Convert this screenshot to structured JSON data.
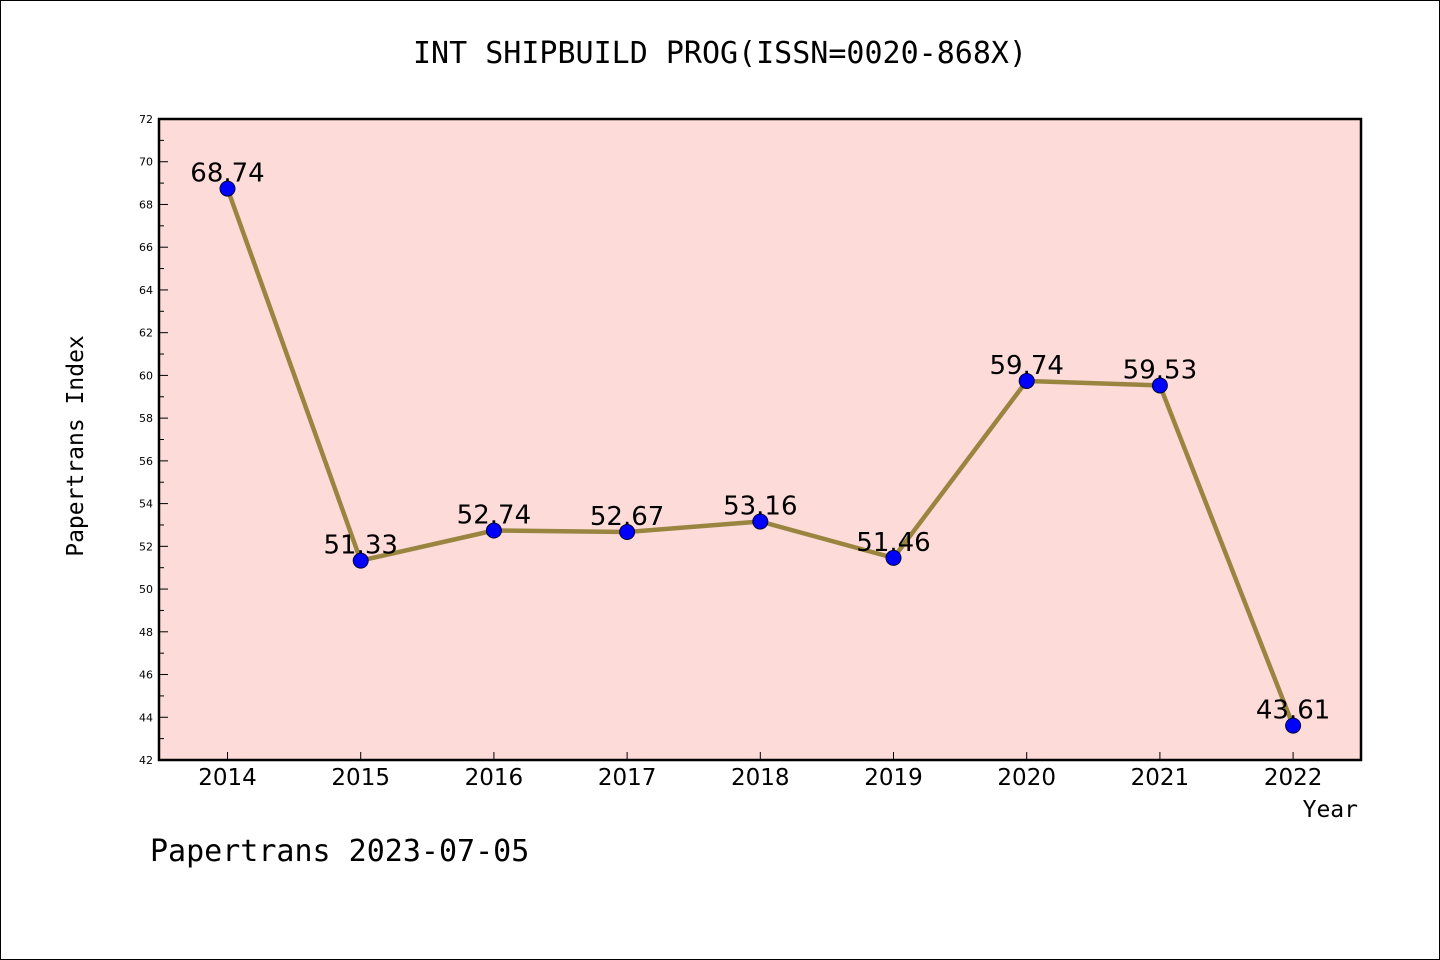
{
  "chart_data": {
    "type": "line",
    "title": "INT SHIPBUILD PROG(ISSN=0020-868X)",
    "xlabel": "Year",
    "ylabel": "Papertrans Index",
    "x": [
      "2014",
      "2015",
      "2016",
      "2017",
      "2018",
      "2019",
      "2020",
      "2021",
      "2022"
    ],
    "series": [
      {
        "values": [
          68.74,
          51.33,
          52.74,
          52.67,
          53.16,
          51.46,
          59.74,
          59.53,
          43.61
        ]
      }
    ],
    "data_labels": [
      "68.74",
      "51.33",
      "52.74",
      "52.67",
      "53.16",
      "51.46",
      "59.74",
      "59.53",
      "43.61"
    ],
    "ylim": [
      42,
      72
    ],
    "yticks": [
      42,
      44,
      46,
      48,
      50,
      52,
      54,
      56,
      58,
      60,
      62,
      64,
      66,
      68,
      70,
      72
    ],
    "grid": false,
    "colors": {
      "plot_background": "#fddbd8",
      "line": "#9a8540",
      "marker": "#0000ff"
    }
  },
  "footer": {
    "note": "Papertrans 2023-07-05"
  }
}
